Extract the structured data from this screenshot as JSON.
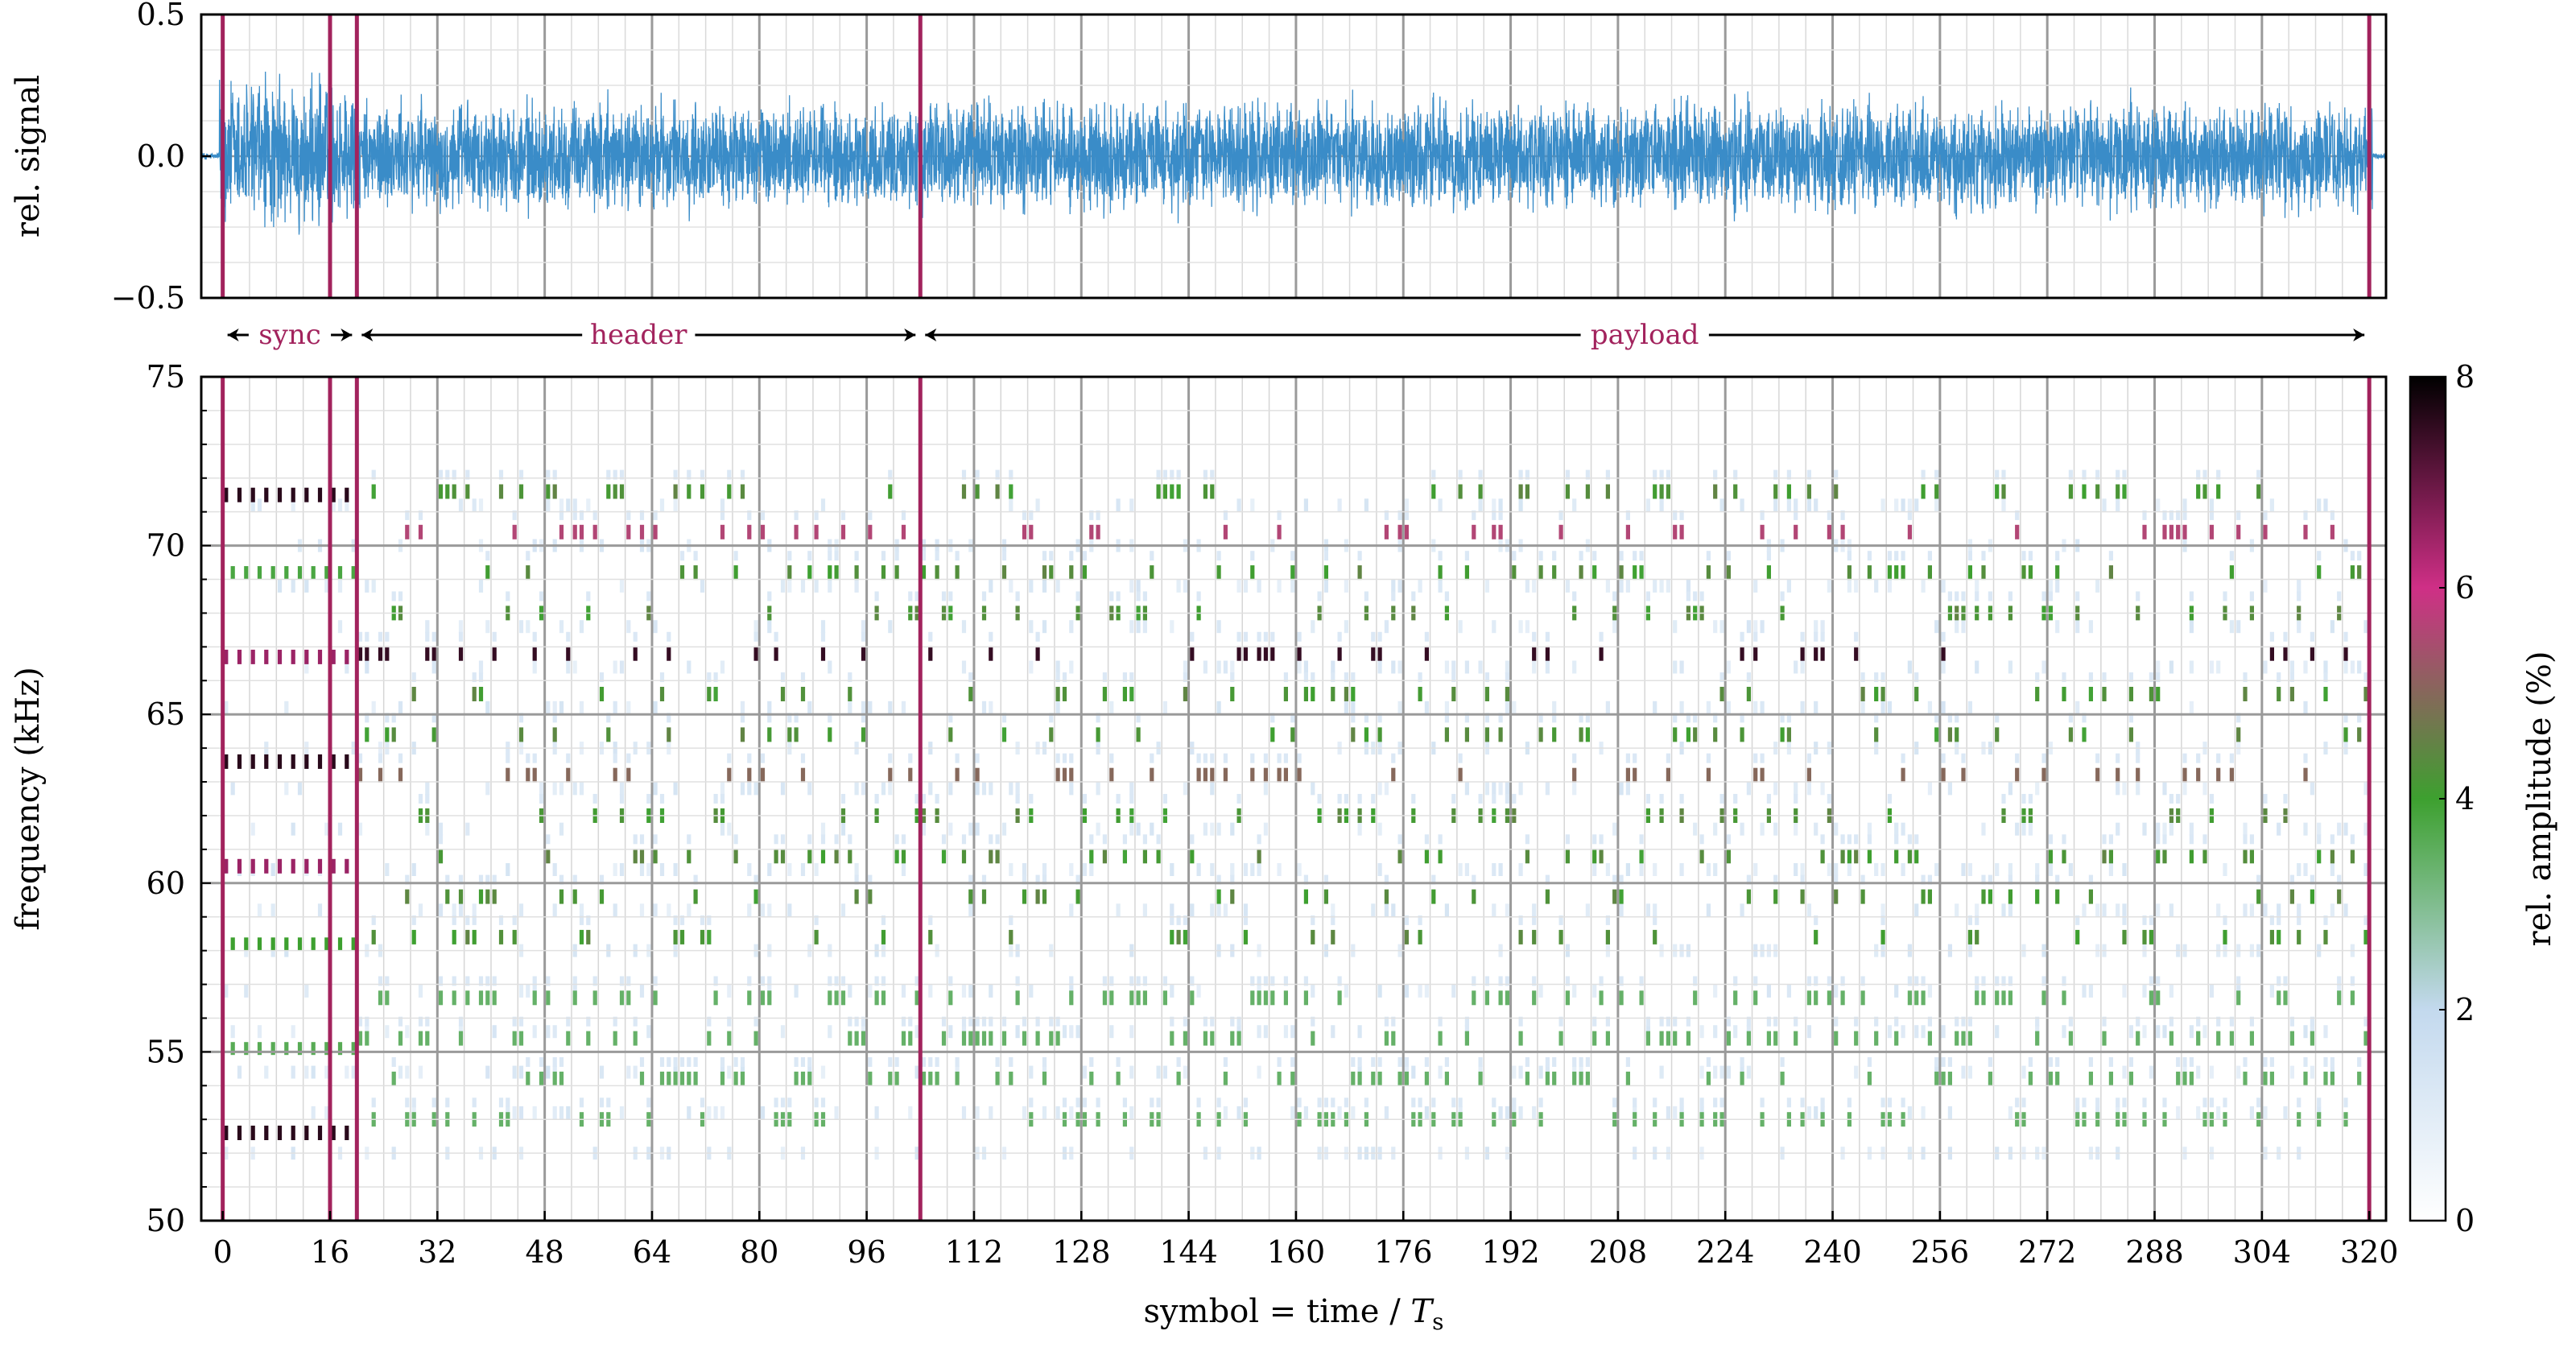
{
  "chart_data": [
    {
      "type": "line",
      "ylabel": "rel. signal",
      "xlim": [
        -3.2,
        322.5
      ],
      "ylim": [
        -0.5,
        0.5
      ],
      "yticks": [
        "0.5",
        "0.0",
        "−0.5"
      ],
      "envelope_amplitude": 0.22,
      "grid": true,
      "line_color": "#3a8cc8"
    },
    {
      "type": "heatmap",
      "xlabel_main": "symbol = time / ",
      "xlabel_italic": "T",
      "xlabel_sub": "s",
      "ylabel": "frequency (kHz)",
      "xlim": [
        -3.2,
        322.5
      ],
      "ylim": [
        50,
        75
      ],
      "xticks": [
        "0",
        "16",
        "32",
        "48",
        "64",
        "80",
        "96",
        "112",
        "128",
        "144",
        "160",
        "176",
        "192",
        "208",
        "224",
        "240",
        "256",
        "272",
        "288",
        "304",
        "320"
      ],
      "yticks": [
        "75",
        "70",
        "65",
        "60",
        "55",
        "50"
      ],
      "grid": true,
      "colorbar": {
        "label": "rel. amplitude (%)",
        "min": 0,
        "max": 8,
        "ticks": [
          "0",
          "2",
          "4",
          "6",
          "8"
        ],
        "colors": [
          "#ffffff",
          "#c3d9ee",
          "#3da02f",
          "#cf2f86",
          "#000000"
        ]
      },
      "sync_tone_freqs_khz": [
        71.5,
        66.7,
        63.6,
        60.5,
        52.6
      ]
    }
  ],
  "boundaries": [
    0,
    16,
    20,
    104,
    320
  ],
  "boundary_color": "#a2235d",
  "sections": [
    {
      "label": "sync",
      "from": 0,
      "to": 20
    },
    {
      "label": "header",
      "from": 20,
      "to": 104
    },
    {
      "label": "payload",
      "from": 104,
      "to": 320
    }
  ]
}
